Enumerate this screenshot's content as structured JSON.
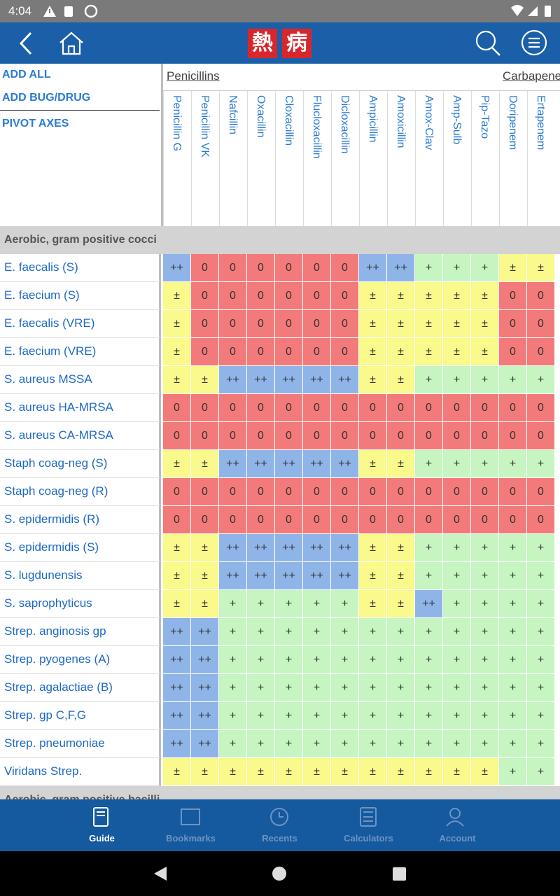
{
  "status_bar": {
    "time": "4:04"
  },
  "app_bar": {
    "logo": [
      "熱",
      "病"
    ]
  },
  "sidebar": {
    "actions": [
      "ADD ALL",
      "ADD BUG/DRUG",
      "PIVOT AXES"
    ]
  },
  "table": {
    "groups": [
      {
        "label": "Penicillins",
        "columns": [
          "Penicillin G",
          "Penicillin VK",
          "Nafcillin",
          "Oxacillin",
          "Cloxacillin",
          "Flucloxacillin",
          "Dicloxacillin",
          "Ampicillin",
          "Amoxicillin",
          "Amox-Clav",
          "Amp-Sulb",
          "Pip-Tazo"
        ]
      },
      {
        "label": "Carbapenems",
        "columns": [
          "Doripenem",
          "Ertapenem"
        ]
      }
    ],
    "colors": {
      "++": "#8fb4e8",
      "0": "#f27a7a",
      "±": "#f9f98c",
      "+": "#c6f5c2"
    },
    "sections": [
      {
        "title": "Aerobic, gram positive cocci",
        "rows": [
          {
            "name": "E. faecalis (S)",
            "cells": [
              "++",
              "0",
              "0",
              "0",
              "0",
              "0",
              "0",
              "++",
              "++",
              "+",
              "+",
              "+",
              "±",
              "±"
            ]
          },
          {
            "name": "E. faecium (S)",
            "cells": [
              "±",
              "0",
              "0",
              "0",
              "0",
              "0",
              "0",
              "±",
              "±",
              "±",
              "±",
              "±",
              "0",
              "0"
            ]
          },
          {
            "name": "E. faecalis (VRE)",
            "cells": [
              "±",
              "0",
              "0",
              "0",
              "0",
              "0",
              "0",
              "±",
              "±",
              "±",
              "±",
              "±",
              "0",
              "0"
            ]
          },
          {
            "name": "E. faecium (VRE)",
            "cells": [
              "±",
              "0",
              "0",
              "0",
              "0",
              "0",
              "0",
              "±",
              "±",
              "±",
              "±",
              "±",
              "0",
              "0"
            ]
          },
          {
            "name": "S. aureus MSSA",
            "cells": [
              "±",
              "±",
              "++",
              "++",
              "++",
              "++",
              "++",
              "±",
              "±",
              "+",
              "+",
              "+",
              "+",
              "+"
            ]
          },
          {
            "name": "S. aureus HA-MRSA",
            "cells": [
              "0",
              "0",
              "0",
              "0",
              "0",
              "0",
              "0",
              "0",
              "0",
              "0",
              "0",
              "0",
              "0",
              "0"
            ]
          },
          {
            "name": "S. aureus CA-MRSA",
            "cells": [
              "0",
              "0",
              "0",
              "0",
              "0",
              "0",
              "0",
              "0",
              "0",
              "0",
              "0",
              "0",
              "0",
              "0"
            ]
          },
          {
            "name": "Staph coag-neg (S)",
            "cells": [
              "±",
              "±",
              "++",
              "++",
              "++",
              "++",
              "++",
              "±",
              "±",
              "+",
              "+",
              "+",
              "+",
              "+"
            ]
          },
          {
            "name": "Staph coag-neg (R)",
            "cells": [
              "0",
              "0",
              "0",
              "0",
              "0",
              "0",
              "0",
              "0",
              "0",
              "0",
              "0",
              "0",
              "0",
              "0"
            ]
          },
          {
            "name": "S. epidermidis (R)",
            "cells": [
              "0",
              "0",
              "0",
              "0",
              "0",
              "0",
              "0",
              "0",
              "0",
              "0",
              "0",
              "0",
              "0",
              "0"
            ]
          },
          {
            "name": "S. epidermidis (S)",
            "cells": [
              "±",
              "±",
              "++",
              "++",
              "++",
              "++",
              "++",
              "±",
              "±",
              "+",
              "+",
              "+",
              "+",
              "+"
            ]
          },
          {
            "name": "S. lugdunensis",
            "cells": [
              "±",
              "±",
              "++",
              "++",
              "++",
              "++",
              "++",
              "±",
              "±",
              "+",
              "+",
              "+",
              "+",
              "+"
            ]
          },
          {
            "name": "S. saprophyticus",
            "cells": [
              "±",
              "±",
              "+",
              "+",
              "+",
              "+",
              "+",
              "±",
              "±",
              "++",
              "+",
              "+",
              "+",
              "+"
            ]
          },
          {
            "name": "Strep. anginosis gp",
            "cells": [
              "++",
              "++",
              "+",
              "+",
              "+",
              "+",
              "+",
              "+",
              "+",
              "+",
              "+",
              "+",
              "+",
              "+"
            ]
          },
          {
            "name": "Strep. pyogenes (A)",
            "cells": [
              "++",
              "++",
              "+",
              "+",
              "+",
              "+",
              "+",
              "+",
              "+",
              "+",
              "+",
              "+",
              "+",
              "+"
            ]
          },
          {
            "name": "Strep. agalactiae (B)",
            "cells": [
              "++",
              "++",
              "+",
              "+",
              "+",
              "+",
              "+",
              "+",
              "+",
              "+",
              "+",
              "+",
              "+",
              "+"
            ]
          },
          {
            "name": "Strep. gp C,F,G",
            "cells": [
              "++",
              "++",
              "+",
              "+",
              "+",
              "+",
              "+",
              "+",
              "+",
              "+",
              "+",
              "+",
              "+",
              "+"
            ]
          },
          {
            "name": "Strep. pneumoniae",
            "cells": [
              "++",
              "++",
              "+",
              "+",
              "+",
              "+",
              "+",
              "+",
              "+",
              "+",
              "+",
              "+",
              "+",
              "+"
            ]
          },
          {
            "name": "Viridans Strep.",
            "cells": [
              "±",
              "±",
              "±",
              "±",
              "±",
              "±",
              "±",
              "±",
              "±",
              "±",
              "±",
              "±",
              "+",
              "+"
            ]
          }
        ]
      },
      {
        "title": "Aerobic, gram positive bacilli",
        "rows": []
      }
    ]
  },
  "bottom_nav": {
    "items": [
      "Guide",
      "Bookmarks",
      "Recents",
      "Calculators",
      "Account"
    ]
  }
}
